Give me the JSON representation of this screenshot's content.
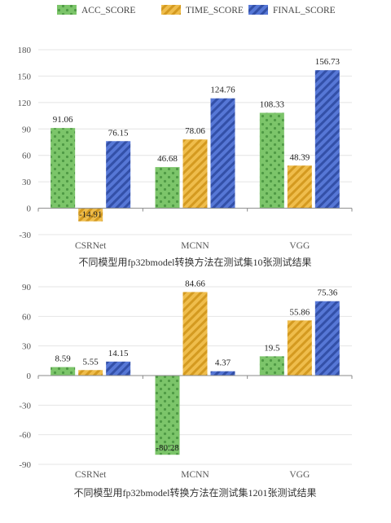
{
  "legend": {
    "position": "top",
    "items": [
      {
        "name": "ACC_SCORE",
        "color": "#7cc56a",
        "pattern": "dots"
      },
      {
        "name": "TIME_SCORE",
        "color": "#e8b23a",
        "pattern": "stripes"
      },
      {
        "name": "FINAL_SCORE",
        "color": "#4a69c9",
        "pattern": "stripes"
      }
    ]
  },
  "chart_data": [
    {
      "type": "bar",
      "title": "不同模型用fp32bmodel转换方法在测试集10张测试结果",
      "categories": [
        "CSRNet",
        "MCNN",
        "VGG"
      ],
      "series": [
        {
          "name": "ACC_SCORE",
          "values": [
            91.06,
            46.68,
            108.33
          ],
          "labels": [
            "91.06",
            "46.68",
            "108.33"
          ]
        },
        {
          "name": "TIME_SCORE",
          "values": [
            -14.91,
            78.06,
            48.39
          ],
          "labels": [
            "-14.91",
            "78.06",
            "48.39"
          ]
        },
        {
          "name": "FINAL_SCORE",
          "values": [
            76.15,
            124.76,
            156.73
          ],
          "labels": [
            "76.15",
            "124.76",
            "156.73"
          ]
        }
      ],
      "ylim": [
        -30,
        180
      ],
      "yticks": [
        -30,
        0,
        30,
        60,
        90,
        120,
        150,
        180
      ],
      "grid": true
    },
    {
      "type": "bar",
      "title": "不同模型用fp32bmodel转换方法在测试集1201张测试结果",
      "categories": [
        "CSRNet",
        "MCNN",
        "VGG"
      ],
      "series": [
        {
          "name": "ACC_SCORE",
          "values": [
            8.59,
            -80.28,
            19.5
          ],
          "labels": [
            "8.59",
            "-80.28",
            "19.5"
          ]
        },
        {
          "name": "TIME_SCORE",
          "values": [
            5.55,
            84.66,
            55.86
          ],
          "labels": [
            "5.55",
            "84.66",
            "55.86"
          ]
        },
        {
          "name": "FINAL_SCORE",
          "values": [
            14.15,
            4.37,
            75.36
          ],
          "labels": [
            "14.15",
            "4.37",
            "75.36"
          ]
        }
      ],
      "ylim": [
        -90,
        90
      ],
      "yticks": [
        -90,
        -60,
        -30,
        0,
        30,
        60,
        90
      ],
      "grid": true
    }
  ]
}
